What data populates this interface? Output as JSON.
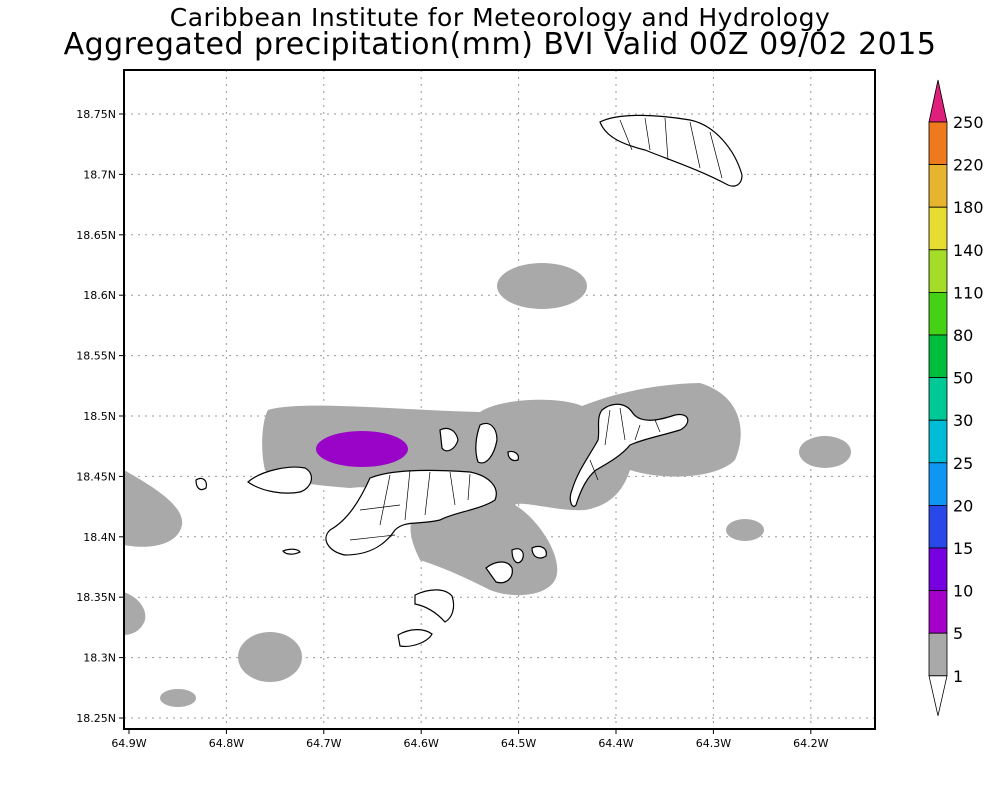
{
  "header": {
    "line1": "Caribbean Institute for Meteorology and Hydrology",
    "line2": "Aggregated precipitation(mm) BVI Valid 00Z 09/02 2015"
  },
  "map": {
    "lon_ticks": [
      "64.9W",
      "64.8W",
      "64.7W",
      "64.6W",
      "64.5W",
      "64.4W",
      "64.3W",
      "64.2W"
    ],
    "lat_ticks": [
      "18.75N",
      "18.7N",
      "18.65N",
      "18.6N",
      "18.55N",
      "18.5N",
      "18.45N",
      "18.4N",
      "18.35N",
      "18.3N",
      "18.25N"
    ],
    "grid": true,
    "land_color": "#ffffff",
    "coast_color": "#000000"
  },
  "colorbar": {
    "labels": [
      "1",
      "5",
      "10",
      "15",
      "20",
      "25",
      "30",
      "50",
      "80",
      "110",
      "140",
      "180",
      "220",
      "250"
    ],
    "colors": [
      "#a9a9a9",
      "#a400c9",
      "#7600e0",
      "#2848e8",
      "#0f96f2",
      "#00bcd6",
      "#00c896",
      "#00be3c",
      "#46d214",
      "#a4dc28",
      "#e6dc32",
      "#e6b42e",
      "#ef7a1d",
      "#f23c3c",
      "#df1f7c"
    ]
  },
  "precip_colors": {
    "light": "#a9a9a9",
    "moderate": "#9a04c8"
  }
}
